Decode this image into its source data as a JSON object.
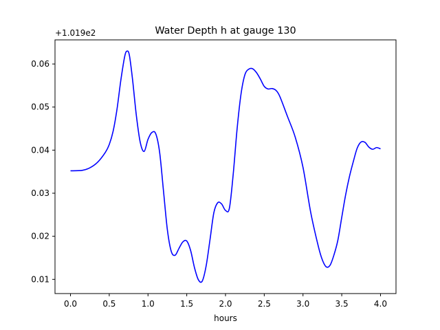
{
  "chart_data": {
    "type": "line",
    "title": "Water Depth h at gauge 130",
    "xlabel": "hours",
    "ylabel": "",
    "offset_text": "+1.019e2",
    "xlim": [
      -0.2,
      4.2
    ],
    "ylim": [
      0.0067,
      0.0656
    ],
    "xticks": [
      0.0,
      0.5,
      1.0,
      1.5,
      2.0,
      2.5,
      3.0,
      3.5,
      4.0
    ],
    "xtick_labels": [
      "0.0",
      "0.5",
      "1.0",
      "1.5",
      "2.0",
      "2.5",
      "3.0",
      "3.5",
      "4.0"
    ],
    "yticks": [
      0.01,
      0.02,
      0.03,
      0.04,
      0.05,
      0.06
    ],
    "ytick_labels": [
      "0.01",
      "0.02",
      "0.03",
      "0.04",
      "0.05",
      "0.06"
    ],
    "grid": false,
    "line_color": "#0000ff",
    "series": [
      {
        "name": "",
        "x": [
          0.0,
          0.15,
          0.25,
          0.35,
          0.45,
          0.5,
          0.55,
          0.6,
          0.65,
          0.7,
          0.73,
          0.76,
          0.8,
          0.85,
          0.9,
          0.95,
          1.0,
          1.05,
          1.1,
          1.15,
          1.2,
          1.25,
          1.3,
          1.35,
          1.4,
          1.45,
          1.5,
          1.55,
          1.6,
          1.65,
          1.7,
          1.75,
          1.8,
          1.85,
          1.9,
          1.95,
          2.0,
          2.05,
          2.1,
          2.15,
          2.2,
          2.25,
          2.3,
          2.35,
          2.4,
          2.45,
          2.5,
          2.55,
          2.6,
          2.65,
          2.7,
          2.8,
          2.9,
          3.0,
          3.1,
          3.2,
          3.25,
          3.3,
          3.35,
          3.4,
          3.45,
          3.5,
          3.55,
          3.6,
          3.65,
          3.7,
          3.75,
          3.8,
          3.85,
          3.9,
          3.95,
          4.0
        ],
        "values": [
          0.0352,
          0.0353,
          0.0359,
          0.0372,
          0.0395,
          0.0413,
          0.0444,
          0.0495,
          0.0563,
          0.0618,
          0.063,
          0.062,
          0.0565,
          0.048,
          0.0418,
          0.0397,
          0.0425,
          0.0441,
          0.0438,
          0.0395,
          0.0305,
          0.0215,
          0.0165,
          0.0156,
          0.0172,
          0.0187,
          0.0189,
          0.0167,
          0.0127,
          0.0099,
          0.0096,
          0.0131,
          0.0192,
          0.0255,
          0.0278,
          0.0275,
          0.026,
          0.0265,
          0.0345,
          0.045,
          0.053,
          0.0575,
          0.0588,
          0.0589,
          0.058,
          0.0565,
          0.0548,
          0.0542,
          0.0543,
          0.0539,
          0.0525,
          0.0478,
          0.043,
          0.036,
          0.0255,
          0.0175,
          0.0145,
          0.0129,
          0.0133,
          0.0157,
          0.0191,
          0.0244,
          0.0296,
          0.0339,
          0.0374,
          0.0405,
          0.0419,
          0.0418,
          0.0407,
          0.0402,
          0.0406,
          0.0403
        ]
      }
    ]
  }
}
